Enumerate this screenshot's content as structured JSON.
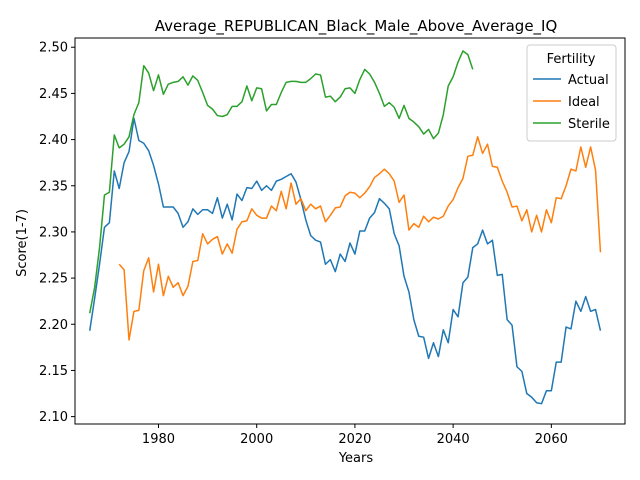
{
  "chart_data": {
    "type": "line",
    "title": "Average_REPUBLICAN_Black_Male_Above_Average_IQ",
    "xlabel": "Years",
    "ylabel": "Score(1-7)",
    "xlim": [
      1963,
      2075
    ],
    "ylim": [
      2.092,
      2.51
    ],
    "x_ticks": [
      1980,
      2000,
      2020,
      2040,
      2060
    ],
    "y_ticks": [
      2.1,
      2.15,
      2.2,
      2.25,
      2.3,
      2.35,
      2.4,
      2.45,
      2.5
    ],
    "grid": false,
    "legend": {
      "title": "Fertility",
      "placement": "top-right"
    },
    "series": [
      {
        "name": "Actual",
        "color": "#1f77b4",
        "points": [
          [
            1966,
            2.193
          ],
          [
            1967,
            2.228
          ],
          [
            1968,
            2.265
          ],
          [
            1969,
            2.305
          ],
          [
            1970,
            2.31
          ],
          [
            1971,
            2.366
          ],
          [
            1972,
            2.347
          ],
          [
            1973,
            2.375
          ],
          [
            1974,
            2.387
          ],
          [
            1975,
            2.423
          ],
          [
            1976,
            2.399
          ],
          [
            1977,
            2.396
          ],
          [
            1978,
            2.388
          ],
          [
            1979,
            2.372
          ],
          [
            1980,
            2.352
          ],
          [
            1981,
            2.327
          ],
          [
            1982,
            2.327
          ],
          [
            1983,
            2.327
          ],
          [
            1984,
            2.32
          ],
          [
            1985,
            2.305
          ],
          [
            1986,
            2.311
          ],
          [
            1987,
            2.325
          ],
          [
            1988,
            2.319
          ],
          [
            1989,
            2.324
          ],
          [
            1990,
            2.324
          ],
          [
            1991,
            2.32
          ],
          [
            1992,
            2.337
          ],
          [
            1993,
            2.315
          ],
          [
            1994,
            2.33
          ],
          [
            1995,
            2.313
          ],
          [
            1996,
            2.341
          ],
          [
            1997,
            2.334
          ],
          [
            1998,
            2.348
          ],
          [
            1999,
            2.347
          ],
          [
            2000,
            2.355
          ],
          [
            2001,
            2.345
          ],
          [
            2002,
            2.35
          ],
          [
            2003,
            2.345
          ],
          [
            2004,
            2.355
          ],
          [
            2005,
            2.357
          ],
          [
            2006,
            2.36
          ],
          [
            2007,
            2.363
          ],
          [
            2008,
            2.354
          ],
          [
            2009,
            2.335
          ],
          [
            2010,
            2.313
          ],
          [
            2011,
            2.296
          ],
          [
            2012,
            2.291
          ],
          [
            2013,
            2.289
          ],
          [
            2014,
            2.265
          ],
          [
            2015,
            2.27
          ],
          [
            2016,
            2.257
          ],
          [
            2017,
            2.276
          ],
          [
            2018,
            2.268
          ],
          [
            2019,
            2.288
          ],
          [
            2020,
            2.276
          ],
          [
            2021,
            2.301
          ],
          [
            2022,
            2.301
          ],
          [
            2023,
            2.315
          ],
          [
            2024,
            2.321
          ],
          [
            2025,
            2.336
          ],
          [
            2026,
            2.331
          ],
          [
            2027,
            2.325
          ],
          [
            2028,
            2.298
          ],
          [
            2029,
            2.285
          ],
          [
            2030,
            2.252
          ],
          [
            2031,
            2.235
          ],
          [
            2032,
            2.205
          ],
          [
            2033,
            2.187
          ],
          [
            2034,
            2.186
          ],
          [
            2035,
            2.163
          ],
          [
            2036,
            2.18
          ],
          [
            2037,
            2.165
          ],
          [
            2038,
            2.194
          ],
          [
            2039,
            2.18
          ],
          [
            2040,
            2.216
          ],
          [
            2041,
            2.208
          ],
          [
            2042,
            2.245
          ],
          [
            2043,
            2.251
          ],
          [
            2044,
            2.283
          ],
          [
            2045,
            2.287
          ],
          [
            2046,
            2.302
          ],
          [
            2047,
            2.287
          ],
          [
            2048,
            2.291
          ],
          [
            2049,
            2.253
          ],
          [
            2050,
            2.254
          ],
          [
            2051,
            2.205
          ],
          [
            2052,
            2.199
          ],
          [
            2053,
            2.154
          ],
          [
            2054,
            2.149
          ],
          [
            2055,
            2.125
          ],
          [
            2056,
            2.121
          ],
          [
            2057,
            2.115
          ],
          [
            2058,
            2.114
          ],
          [
            2059,
            2.128
          ],
          [
            2060,
            2.128
          ],
          [
            2061,
            2.159
          ],
          [
            2062,
            2.159
          ],
          [
            2063,
            2.197
          ],
          [
            2064,
            2.195
          ],
          [
            2065,
            2.225
          ],
          [
            2066,
            2.214
          ],
          [
            2067,
            2.23
          ],
          [
            2068,
            2.214
          ],
          [
            2069,
            2.216
          ],
          [
            2070,
            2.193
          ]
        ]
      },
      {
        "name": "Ideal",
        "color": "#ff7f0e",
        "points": [
          [
            1972,
            2.265
          ],
          [
            1973,
            2.259
          ],
          [
            1974,
            2.183
          ],
          [
            1975,
            2.214
          ],
          [
            1976,
            2.215
          ],
          [
            1977,
            2.258
          ],
          [
            1978,
            2.272
          ],
          [
            1979,
            2.235
          ],
          [
            1980,
            2.265
          ],
          [
            1981,
            2.231
          ],
          [
            1982,
            2.252
          ],
          [
            1983,
            2.24
          ],
          [
            1984,
            2.245
          ],
          [
            1985,
            2.231
          ],
          [
            1986,
            2.241
          ],
          [
            1987,
            2.268
          ],
          [
            1988,
            2.269
          ],
          [
            1989,
            2.298
          ],
          [
            1990,
            2.287
          ],
          [
            1991,
            2.292
          ],
          [
            1992,
            2.295
          ],
          [
            1993,
            2.276
          ],
          [
            1994,
            2.287
          ],
          [
            1995,
            2.277
          ],
          [
            1996,
            2.303
          ],
          [
            1997,
            2.311
          ],
          [
            1998,
            2.312
          ],
          [
            1999,
            2.325
          ],
          [
            2000,
            2.318
          ],
          [
            2001,
            2.315
          ],
          [
            2002,
            2.315
          ],
          [
            2003,
            2.328
          ],
          [
            2004,
            2.323
          ],
          [
            2005,
            2.344
          ],
          [
            2006,
            2.325
          ],
          [
            2007,
            2.353
          ],
          [
            2008,
            2.33
          ],
          [
            2009,
            2.336
          ],
          [
            2010,
            2.323
          ],
          [
            2011,
            2.33
          ],
          [
            2012,
            2.325
          ],
          [
            2013,
            2.328
          ],
          [
            2014,
            2.311
          ],
          [
            2015,
            2.318
          ],
          [
            2016,
            2.326
          ],
          [
            2017,
            2.327
          ],
          [
            2018,
            2.339
          ],
          [
            2019,
            2.343
          ],
          [
            2020,
            2.342
          ],
          [
            2021,
            2.337
          ],
          [
            2022,
            2.342
          ],
          [
            2023,
            2.349
          ],
          [
            2024,
            2.359
          ],
          [
            2025,
            2.363
          ],
          [
            2026,
            2.368
          ],
          [
            2027,
            2.363
          ],
          [
            2028,
            2.355
          ],
          [
            2029,
            2.332
          ],
          [
            2030,
            2.34
          ],
          [
            2031,
            2.302
          ],
          [
            2032,
            2.309
          ],
          [
            2033,
            2.305
          ],
          [
            2034,
            2.317
          ],
          [
            2035,
            2.311
          ],
          [
            2036,
            2.316
          ],
          [
            2037,
            2.314
          ],
          [
            2038,
            2.317
          ],
          [
            2039,
            2.328
          ],
          [
            2040,
            2.335
          ],
          [
            2041,
            2.348
          ],
          [
            2042,
            2.358
          ],
          [
            2043,
            2.382
          ],
          [
            2044,
            2.383
          ],
          [
            2045,
            2.403
          ],
          [
            2046,
            2.385
          ],
          [
            2047,
            2.395
          ],
          [
            2048,
            2.371
          ],
          [
            2049,
            2.37
          ],
          [
            2050,
            2.355
          ],
          [
            2051,
            2.343
          ],
          [
            2052,
            2.327
          ],
          [
            2053,
            2.328
          ],
          [
            2054,
            2.312
          ],
          [
            2055,
            2.324
          ],
          [
            2056,
            2.3
          ],
          [
            2057,
            2.318
          ],
          [
            2058,
            2.3
          ],
          [
            2059,
            2.324
          ],
          [
            2060,
            2.31
          ],
          [
            2061,
            2.337
          ],
          [
            2062,
            2.336
          ],
          [
            2063,
            2.35
          ],
          [
            2064,
            2.368
          ],
          [
            2065,
            2.366
          ],
          [
            2066,
            2.392
          ],
          [
            2067,
            2.37
          ],
          [
            2068,
            2.392
          ],
          [
            2069,
            2.367
          ],
          [
            2070,
            2.278
          ]
        ]
      },
      {
        "name": "Sterile",
        "color": "#2ca02c",
        "points": [
          [
            1966,
            2.212
          ],
          [
            1967,
            2.24
          ],
          [
            1968,
            2.283
          ],
          [
            1969,
            2.34
          ],
          [
            1970,
            2.343
          ],
          [
            1971,
            2.405
          ],
          [
            1972,
            2.391
          ],
          [
            1973,
            2.395
          ],
          [
            1974,
            2.403
          ],
          [
            1975,
            2.427
          ],
          [
            1976,
            2.44
          ],
          [
            1977,
            2.48
          ],
          [
            1978,
            2.472
          ],
          [
            1979,
            2.453
          ],
          [
            1980,
            2.47
          ],
          [
            1981,
            2.449
          ],
          [
            1982,
            2.46
          ],
          [
            1983,
            2.462
          ],
          [
            1984,
            2.463
          ],
          [
            1985,
            2.468
          ],
          [
            1986,
            2.459
          ],
          [
            1987,
            2.469
          ],
          [
            1988,
            2.464
          ],
          [
            1989,
            2.451
          ],
          [
            1990,
            2.437
          ],
          [
            1991,
            2.433
          ],
          [
            1992,
            2.426
          ],
          [
            1993,
            2.425
          ],
          [
            1994,
            2.427
          ],
          [
            1995,
            2.436
          ],
          [
            1996,
            2.436
          ],
          [
            1997,
            2.441
          ],
          [
            1998,
            2.458
          ],
          [
            1999,
            2.442
          ],
          [
            2000,
            2.456
          ],
          [
            2001,
            2.455
          ],
          [
            2002,
            2.431
          ],
          [
            2003,
            2.438
          ],
          [
            2004,
            2.438
          ],
          [
            2005,
            2.451
          ],
          [
            2006,
            2.462
          ],
          [
            2007,
            2.463
          ],
          [
            2008,
            2.463
          ],
          [
            2009,
            2.462
          ],
          [
            2010,
            2.462
          ],
          [
            2011,
            2.466
          ],
          [
            2012,
            2.471
          ],
          [
            2013,
            2.47
          ],
          [
            2014,
            2.446
          ],
          [
            2015,
            2.447
          ],
          [
            2016,
            2.441
          ],
          [
            2017,
            2.446
          ],
          [
            2018,
            2.455
          ],
          [
            2019,
            2.456
          ],
          [
            2020,
            2.45
          ],
          [
            2021,
            2.465
          ],
          [
            2022,
            2.476
          ],
          [
            2023,
            2.471
          ],
          [
            2024,
            2.462
          ],
          [
            2025,
            2.45
          ],
          [
            2026,
            2.436
          ],
          [
            2027,
            2.44
          ],
          [
            2028,
            2.435
          ],
          [
            2029,
            2.423
          ],
          [
            2030,
            2.437
          ],
          [
            2031,
            2.423
          ],
          [
            2032,
            2.419
          ],
          [
            2033,
            2.414
          ],
          [
            2034,
            2.406
          ],
          [
            2035,
            2.411
          ],
          [
            2036,
            2.401
          ],
          [
            2037,
            2.407
          ],
          [
            2038,
            2.427
          ],
          [
            2039,
            2.458
          ],
          [
            2040,
            2.468
          ],
          [
            2041,
            2.484
          ],
          [
            2042,
            2.496
          ],
          [
            2043,
            2.492
          ],
          [
            2044,
            2.476
          ]
        ]
      }
    ]
  }
}
